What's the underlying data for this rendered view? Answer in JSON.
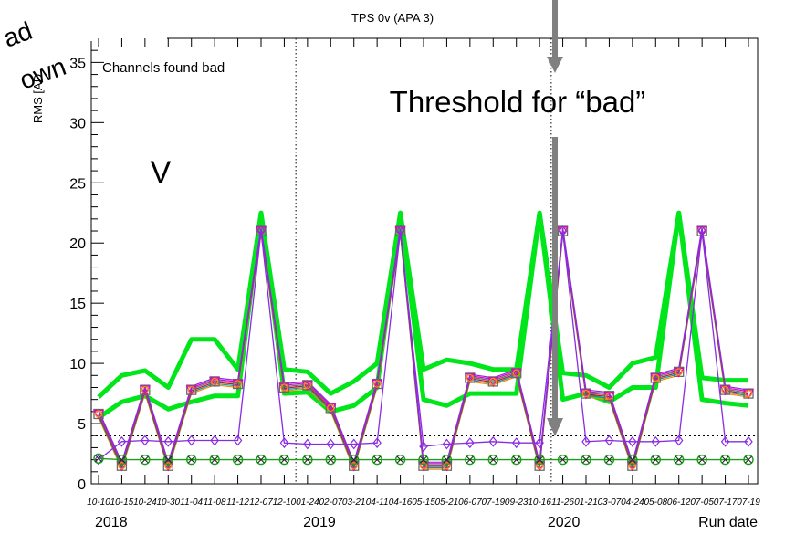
{
  "title": "TPS 0v (APA 3)",
  "ylabel": "RMS [AD",
  "xlabel": "Run date",
  "legend_text": "Channels found bad",
  "annotations": {
    "threshold": "Threshold for “bad”",
    "plane": "V",
    "corner_line1": "ad",
    "corner_line2": "own"
  },
  "year_labels": [
    "2018",
    "2019",
    "2020"
  ],
  "x_tick_labels": [
    "10-10",
    "10-15",
    "10-24",
    "10-30",
    "11-04",
    "11-08",
    "11-12",
    "12-07",
    "12-10",
    "01-24",
    "02-07",
    "03-21",
    "04-11",
    "04-16",
    "05-15",
    "05-21",
    "06-07",
    "07-19",
    "09-23",
    "10-16",
    "11-26",
    "01-21",
    "03-07",
    "04-24",
    "05-08",
    "06-12",
    "07-05",
    "07-17",
    "07-19"
  ],
  "colors": {
    "green_band": "#00e61a",
    "green_series": "#1a9e1a",
    "purple_series": "#8a2be2",
    "magenta_series": "#e000c8",
    "teal_series": "#009aa6",
    "orange_series": "#ff8a00",
    "red_series": "#c8102e",
    "gray_series": "#6a6a6a",
    "arrow": "#808080",
    "threshold_line": "#000000"
  },
  "chart_data": {
    "type": "line",
    "title": "TPS 0v (APA 3)",
    "xlabel": "Run date",
    "ylabel": "RMS [AD",
    "ylim": [
      0,
      37
    ],
    "grid": false,
    "y_ticks": [
      0,
      5,
      10,
      15,
      20,
      25,
      30,
      35
    ],
    "x_index": [
      0,
      1,
      2,
      3,
      4,
      5,
      6,
      7,
      8,
      9,
      10,
      11,
      12,
      13,
      14,
      15,
      16,
      17,
      18,
      19,
      20,
      21,
      22,
      23,
      24,
      25,
      26,
      27,
      28
    ],
    "year_dividers_after_index": [
      8.5,
      19.5
    ],
    "threshold": 4,
    "series": [
      {
        "name": "",
        "style": "band",
        "values": [
          7.2,
          9,
          9.4,
          8,
          12,
          12,
          9.5,
          22.5,
          9.5,
          9.3,
          7.5,
          8.5,
          10,
          22.5,
          9.5,
          10.3,
          10,
          9.5,
          9.5,
          22.5,
          9.2,
          9,
          8,
          10,
          10.5,
          22.5,
          8.8,
          8.6,
          8.6
        ]
      },
      {
        "name": "",
        "style": "band",
        "values": [
          5.5,
          6.8,
          7.3,
          6.2,
          6.8,
          7.3,
          7.3,
          22.5,
          7.5,
          7.6,
          6,
          6.5,
          8,
          22.5,
          7,
          6.5,
          7.5,
          7.5,
          7.5,
          22.5,
          7,
          7.5,
          6.8,
          8,
          8,
          22.5,
          7,
          6.7,
          6.5
        ]
      },
      {
        "name": "",
        "style": "upper",
        "values": [
          5.8,
          1.5,
          7.8,
          1.5,
          7.8,
          8.5,
          8.3,
          21,
          8,
          8.2,
          6.3,
          1.5,
          8.3,
          21,
          1.5,
          1.5,
          8.8,
          8.5,
          9.2,
          1.5,
          21,
          7.5,
          7.3,
          1.5,
          8.8,
          9.3,
          21,
          7.8,
          7.5
        ]
      },
      {
        "name": "",
        "style": "mid",
        "values": [
          2,
          3.5,
          3.6,
          3.5,
          3.6,
          3.6,
          3.6,
          21,
          3.4,
          3.3,
          3.3,
          3.3,
          3.4,
          21,
          3.1,
          3.3,
          3.4,
          3.5,
          3.4,
          3.4,
          21,
          3.5,
          3.6,
          3.5,
          3.5,
          3.6,
          21,
          3.5,
          3.5
        ]
      },
      {
        "name": "",
        "style": "low",
        "values": [
          2.1,
          2,
          2,
          2,
          2,
          2,
          2,
          2,
          2,
          2,
          2,
          2,
          2,
          2,
          2,
          2,
          2,
          2,
          2,
          2,
          2,
          2,
          2,
          2,
          2,
          2,
          2,
          2,
          2
        ]
      }
    ]
  }
}
